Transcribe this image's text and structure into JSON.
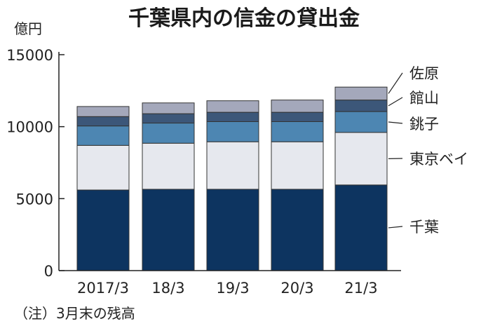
{
  "chart_data": {
    "type": "bar",
    "stacked": true,
    "title": "千葉県内の信金の貸出金",
    "ylabel": "億円",
    "ylim": [
      0,
      15000
    ],
    "yticks": [
      0,
      5000,
      10000,
      15000
    ],
    "ytick_labels": [
      "0",
      "5000",
      "10000",
      "15000"
    ],
    "categories": [
      "2017/3",
      "18/3",
      "19/3",
      "20/3",
      "21/3"
    ],
    "series": [
      {
        "name": "千葉",
        "color": "#0d3460",
        "values": [
          5600,
          5650,
          5650,
          5650,
          5950
        ]
      },
      {
        "name": "東京ベイ",
        "color": "#e6e8ee",
        "values": [
          3100,
          3200,
          3300,
          3300,
          3650
        ]
      },
      {
        "name": "銚子",
        "color": "#4d86b2",
        "values": [
          1350,
          1400,
          1400,
          1400,
          1450
        ]
      },
      {
        "name": "館山",
        "color": "#3c5779",
        "values": [
          650,
          650,
          650,
          650,
          800
        ]
      },
      {
        "name": "佐原",
        "color": "#a4a8bb",
        "values": [
          700,
          750,
          800,
          850,
          900
        ]
      }
    ],
    "legend_placement": "right",
    "grid": false,
    "note": "（注）3月末の残高"
  }
}
